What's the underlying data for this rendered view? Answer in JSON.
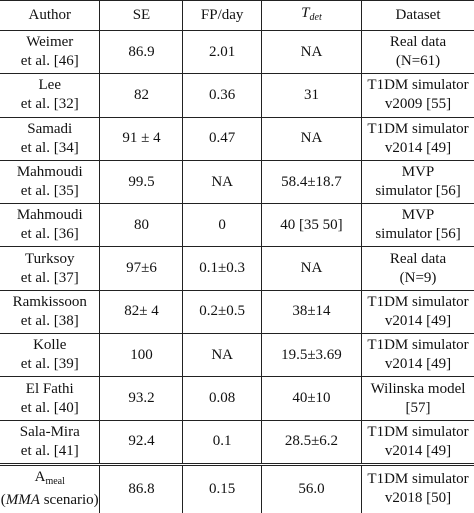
{
  "headers": {
    "author": "Author",
    "se": "SE",
    "fp": "FP/day",
    "tdet_base": "T",
    "tdet_sub": "det",
    "dataset": "Dataset"
  },
  "rows": [
    {
      "author1": "Weimer",
      "author2": "et al. [46]",
      "se": "86.9",
      "fp": "2.01",
      "tdet": "NA",
      "dataset1": "Real data",
      "dataset2": "(N=61)"
    },
    {
      "author1": "Lee",
      "author2": "et al. [32]",
      "se": "82",
      "fp": "0.36",
      "tdet": "31",
      "dataset1": "T1DM simulator",
      "dataset2": "v2009 [55]"
    },
    {
      "author1": "Samadi",
      "author2": "et al. [34]",
      "se": "91 ± 4",
      "fp": "0.47",
      "tdet": "NA",
      "dataset1": "T1DM simulator",
      "dataset2": "v2014 [49]"
    },
    {
      "author1": "Mahmoudi",
      "author2": "et al. [35]",
      "se": "99.5",
      "fp": "NA",
      "tdet": "58.4±18.7",
      "dataset1": "MVP",
      "dataset2": "simulator [56]"
    },
    {
      "author1": "Mahmoudi",
      "author2": "et al. [36]",
      "se": "80",
      "fp": "0",
      "tdet": "40 [35 50]",
      "dataset1": "MVP",
      "dataset2": "simulator [56]"
    },
    {
      "author1": "Turksoy",
      "author2": "et al. [37]",
      "se": "97±6",
      "fp": "0.1±0.3",
      "tdet": "NA",
      "dataset1": "Real data",
      "dataset2": "(N=9)"
    },
    {
      "author1": "Ramkissoon",
      "author2": "et al. [38]",
      "se": "82± 4",
      "fp": "0.2±0.5",
      "tdet": "38±14",
      "dataset1": "T1DM simulator",
      "dataset2": "v2014 [49]"
    },
    {
      "author1": "Kolle",
      "author2": "et al. [39]",
      "se": "100",
      "fp": "NA",
      "tdet": "19.5±3.69",
      "dataset1": "T1DM simulator",
      "dataset2": "v2014 [49]"
    },
    {
      "author1": "El Fathi",
      "author2": "et al. [40]",
      "se": "93.2",
      "fp": "0.08",
      "tdet": "40±10",
      "dataset1": "Wilinska model",
      "dataset2": "[57]"
    },
    {
      "author1": "Sala-Mira",
      "author2": "et al. [41]",
      "se": "92.4",
      "fp": "0.1",
      "tdet": "28.5±6.2",
      "dataset1": "T1DM simulator",
      "dataset2": "v2014 [49]"
    }
  ],
  "final_row": {
    "author_base": "A",
    "author_sub": "meal",
    "scenario": "MMA",
    "scenario_suffix": " scenario)",
    "se": "86.8",
    "fp": "0.15",
    "tdet": "56.0",
    "dataset1": "T1DM simulator",
    "dataset2": "v2018 [50]"
  }
}
